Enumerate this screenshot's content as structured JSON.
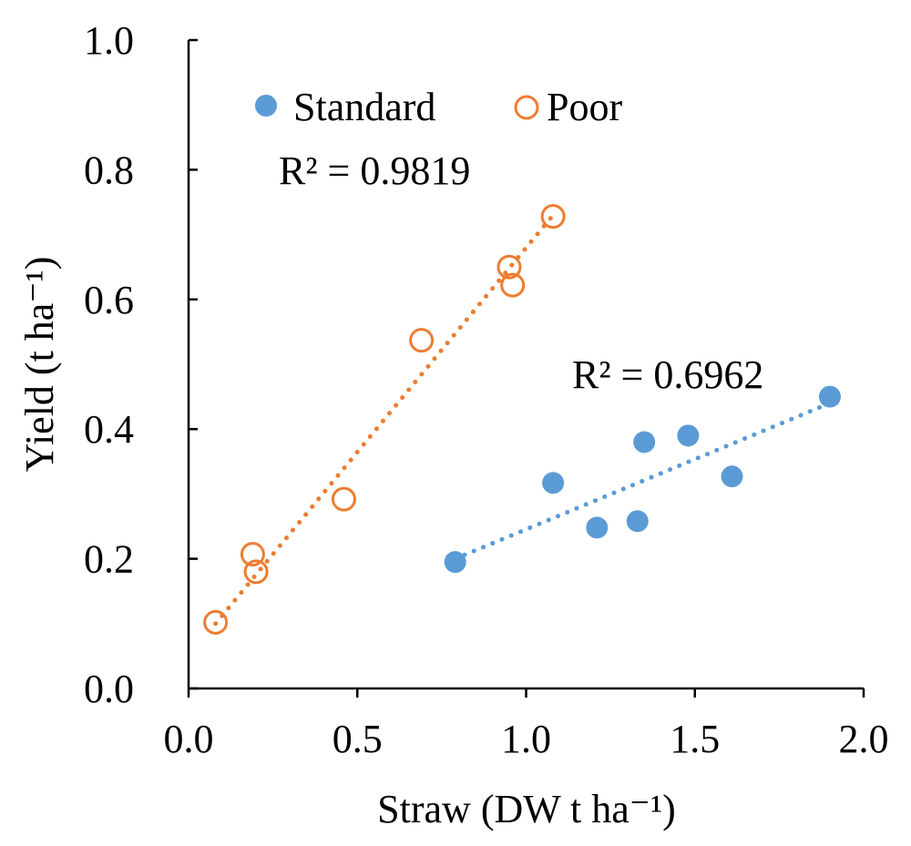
{
  "chart_data": {
    "type": "scatter",
    "title": "",
    "xlabel": "Straw (DW t ha⁻¹)",
    "ylabel": "Yield (t ha⁻¹)",
    "xlim": [
      0.0,
      2.0
    ],
    "ylim": [
      0.0,
      1.0
    ],
    "x_ticks": [
      "0.0",
      "0.5",
      "1.0",
      "1.5",
      "2.0"
    ],
    "y_ticks": [
      "0.0",
      "0.2",
      "0.4",
      "0.6",
      "0.8",
      "1.0"
    ],
    "grid": false,
    "legend_position": "top-left",
    "series": [
      {
        "name": "Standard",
        "marker": "filled-circle",
        "color": "#5B9BD5",
        "points": [
          [
            0.79,
            0.195
          ],
          [
            1.08,
            0.317
          ],
          [
            1.21,
            0.248
          ],
          [
            1.33,
            0.258
          ],
          [
            1.35,
            0.38
          ],
          [
            1.48,
            0.39
          ],
          [
            1.61,
            0.327
          ],
          [
            1.9,
            0.45
          ]
        ],
        "trendline": {
          "type": "linear",
          "r_squared_label": "R² = 0.6962",
          "from": [
            0.79,
            0.2
          ],
          "to": [
            1.9,
            0.44
          ]
        }
      },
      {
        "name": "Poor",
        "marker": "open-circle",
        "color": "#ED7D31",
        "points": [
          [
            0.08,
            0.102
          ],
          [
            0.19,
            0.207
          ],
          [
            0.2,
            0.18
          ],
          [
            0.46,
            0.292
          ],
          [
            0.69,
            0.537
          ],
          [
            0.95,
            0.65
          ],
          [
            0.96,
            0.622
          ],
          [
            1.08,
            0.728
          ]
        ],
        "trendline": {
          "type": "linear",
          "r_squared_label": "R² = 0.9819",
          "from": [
            0.08,
            0.1
          ],
          "to": [
            1.08,
            0.73
          ]
        }
      }
    ]
  }
}
